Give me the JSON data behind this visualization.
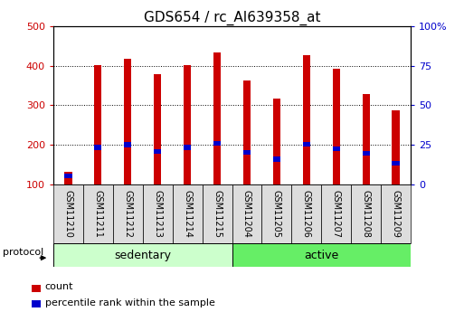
{
  "title": "GDS654 / rc_AI639358_at",
  "samples": [
    "GSM11210",
    "GSM11211",
    "GSM11212",
    "GSM11213",
    "GSM11214",
    "GSM11215",
    "GSM11204",
    "GSM11205",
    "GSM11206",
    "GSM11207",
    "GSM11208",
    "GSM11209"
  ],
  "counts": [
    130,
    402,
    418,
    380,
    402,
    435,
    362,
    318,
    428,
    393,
    328,
    288
  ],
  "percentile_values": [
    120,
    193,
    200,
    182,
    193,
    203,
    180,
    163,
    202,
    190,
    178,
    153
  ],
  "bar_color": "#cc0000",
  "percentile_color": "#0000cc",
  "groups": [
    {
      "label": "sedentary",
      "start": 0,
      "end": 6,
      "color": "#ccffcc"
    },
    {
      "label": "active",
      "start": 6,
      "end": 12,
      "color": "#66ee66"
    }
  ],
  "protocol_label": "protocol",
  "ylim_left": [
    100,
    500
  ],
  "ylim_right": [
    0,
    100
  ],
  "yticks_left": [
    100,
    200,
    300,
    400,
    500
  ],
  "yticks_right": [
    0,
    25,
    50,
    75,
    100
  ],
  "ytick_labels_right": [
    "0",
    "25",
    "50",
    "75",
    "100%"
  ],
  "bar_width": 0.25,
  "sample_box_color": "#dddddd",
  "left_tick_color": "#cc0000",
  "right_tick_color": "#0000cc",
  "title_fontsize": 11,
  "tick_fontsize": 8,
  "sample_fontsize": 7,
  "group_fontsize": 9,
  "legend_items": [
    "count",
    "percentile rank within the sample"
  ]
}
